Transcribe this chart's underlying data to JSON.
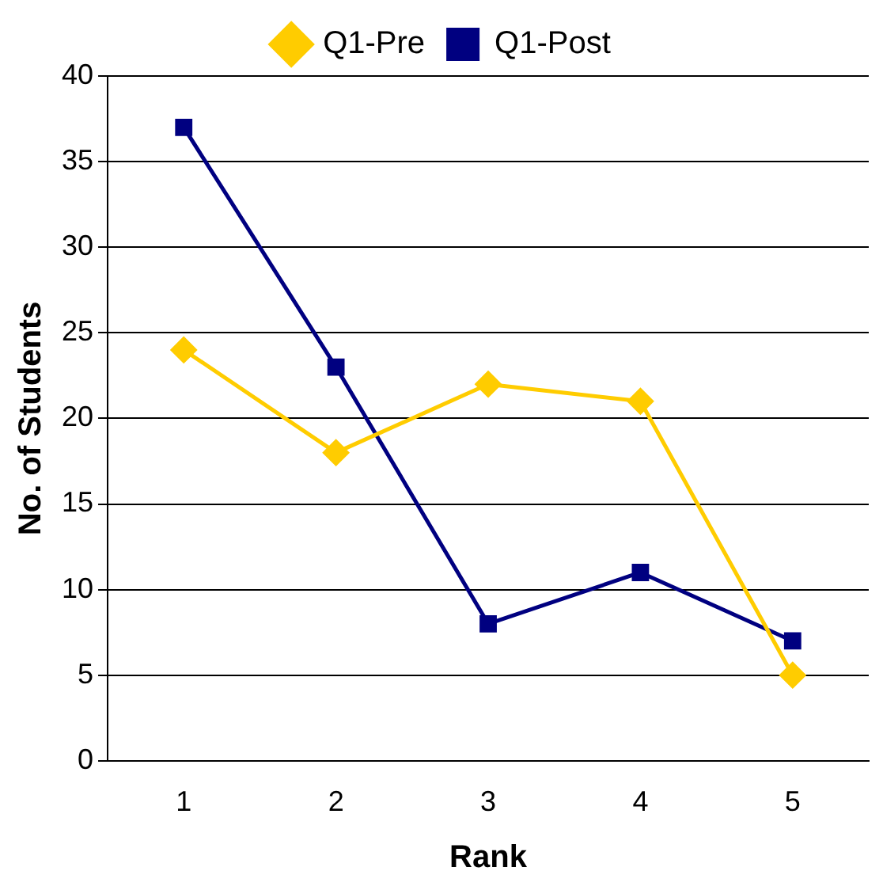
{
  "chart_data": {
    "type": "line",
    "xlabel": "Rank",
    "ylabel": "No. of Students",
    "categories": [
      "1",
      "2",
      "3",
      "4",
      "5"
    ],
    "series": [
      {
        "name": "Q1-Pre",
        "color": "#ffcc00",
        "marker": "diamond",
        "values": [
          24,
          18,
          22,
          21,
          5
        ]
      },
      {
        "name": "Q1-Post",
        "color": "#000080",
        "marker": "square",
        "values": [
          37,
          23,
          8,
          11,
          7
        ]
      }
    ],
    "ylim": [
      0,
      40
    ],
    "yticks": [
      0,
      5,
      10,
      15,
      20,
      25,
      30,
      35,
      40
    ],
    "grid": "y",
    "legend": "top",
    "line_style": "solid"
  }
}
